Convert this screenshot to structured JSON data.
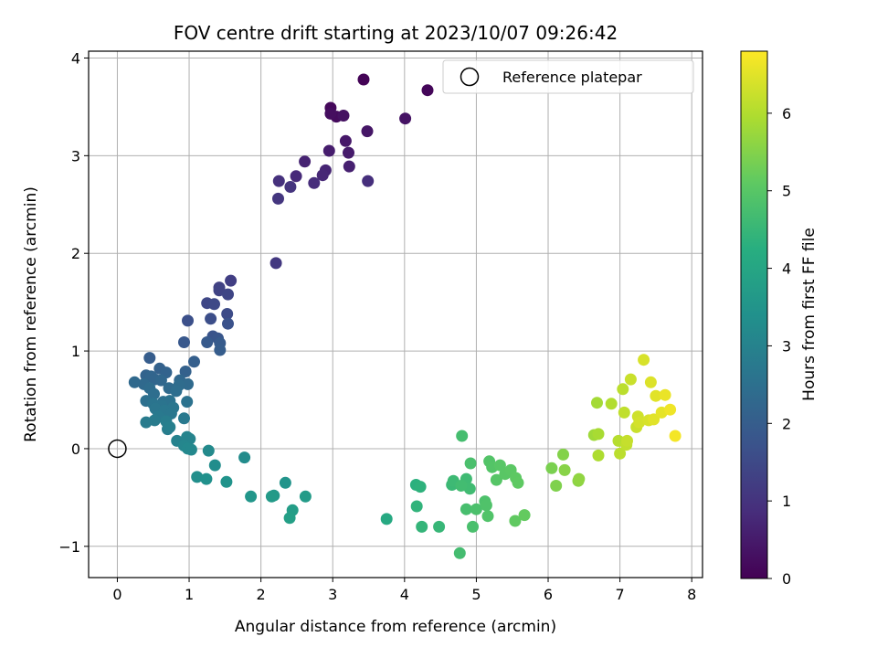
{
  "chart_data": {
    "type": "scatter",
    "title": "FOV centre drift starting at 2023/10/07 09:26:42",
    "xlabel": "Angular distance from reference (arcmin)",
    "ylabel": "Rotation from reference (arcmin)",
    "xlim": [
      -0.4,
      8.15
    ],
    "ylim": [
      -1.32,
      4.07
    ],
    "xticks": [
      "0",
      "1",
      "2",
      "3",
      "4",
      "5",
      "6",
      "7",
      "8"
    ],
    "yticks": [
      "−1",
      "0",
      "1",
      "2",
      "3",
      "4"
    ],
    "grid": true,
    "legend": {
      "placement": "top-right",
      "entries": [
        "Reference platepar"
      ]
    },
    "reference_point": {
      "x": 0,
      "y": 0,
      "marker": "open-circle"
    },
    "colorbar": {
      "label": "Hours from first FF file",
      "range": [
        0,
        6.8
      ],
      "ticks": [
        "0",
        "1",
        "2",
        "3",
        "4",
        "5",
        "6"
      ],
      "colormap": "viridis"
    },
    "points": [
      [
        3.43,
        3.78,
        0.05
      ],
      [
        4.32,
        3.67,
        0.1
      ],
      [
        2.97,
        3.49,
        0.15
      ],
      [
        3.05,
        3.4,
        0.2
      ],
      [
        2.97,
        3.43,
        0.25
      ],
      [
        3.15,
        3.41,
        0.3
      ],
      [
        4.01,
        3.38,
        0.35
      ],
      [
        3.48,
        3.25,
        0.4
      ],
      [
        3.18,
        3.15,
        0.45
      ],
      [
        3.22,
        3.03,
        0.5
      ],
      [
        2.95,
        3.05,
        0.55
      ],
      [
        3.23,
        2.89,
        0.6
      ],
      [
        2.61,
        2.94,
        0.65
      ],
      [
        2.9,
        2.85,
        0.7
      ],
      [
        2.86,
        2.8,
        0.75
      ],
      [
        2.49,
        2.79,
        0.8
      ],
      [
        2.74,
        2.72,
        0.85
      ],
      [
        3.49,
        2.74,
        0.9
      ],
      [
        2.25,
        2.74,
        0.95
      ],
      [
        2.41,
        2.68,
        1.0
      ],
      [
        2.24,
        2.56,
        1.05
      ],
      [
        2.21,
        1.9,
        1.1
      ],
      [
        1.58,
        1.72,
        1.25
      ],
      [
        1.42,
        1.65,
        1.3
      ],
      [
        1.42,
        1.62,
        1.35
      ],
      [
        1.54,
        1.58,
        1.4
      ],
      [
        1.25,
        1.49,
        1.45
      ],
      [
        1.35,
        1.48,
        1.5
      ],
      [
        1.53,
        1.38,
        1.55
      ],
      [
        1.3,
        1.33,
        1.6
      ],
      [
        0.98,
        1.31,
        1.65
      ],
      [
        1.54,
        1.28,
        1.7
      ],
      [
        1.33,
        1.15,
        1.75
      ],
      [
        1.4,
        1.13,
        1.8
      ],
      [
        0.93,
        1.09,
        1.85
      ],
      [
        1.25,
        1.09,
        1.9
      ],
      [
        1.43,
        1.08,
        1.95
      ],
      [
        1.43,
        1.01,
        2.0
      ],
      [
        0.45,
        0.93,
        2.0
      ],
      [
        1.07,
        0.89,
        2.05
      ],
      [
        0.95,
        0.79,
        2.1
      ],
      [
        0.59,
        0.82,
        2.1
      ],
      [
        0.68,
        0.78,
        2.15
      ],
      [
        0.4,
        0.75,
        2.15
      ],
      [
        0.47,
        0.74,
        2.2
      ],
      [
        0.52,
        0.71,
        2.2
      ],
      [
        0.87,
        0.7,
        2.25
      ],
      [
        0.61,
        0.7,
        2.25
      ],
      [
        0.24,
        0.68,
        2.3
      ],
      [
        0.37,
        0.66,
        2.3
      ],
      [
        0.98,
        0.66,
        2.35
      ],
      [
        0.72,
        0.62,
        2.35
      ],
      [
        0.86,
        0.65,
        2.4
      ],
      [
        0.45,
        0.62,
        2.4
      ],
      [
        0.51,
        0.56,
        2.45
      ],
      [
        0.82,
        0.59,
        2.45
      ],
      [
        0.4,
        0.49,
        2.5
      ],
      [
        0.64,
        0.48,
        2.5
      ],
      [
        0.97,
        0.48,
        2.55
      ],
      [
        0.73,
        0.49,
        2.55
      ],
      [
        0.5,
        0.46,
        2.6
      ],
      [
        0.62,
        0.44,
        2.6
      ],
      [
        0.78,
        0.42,
        2.65
      ],
      [
        0.53,
        0.41,
        2.65
      ],
      [
        0.66,
        0.39,
        2.7
      ],
      [
        0.75,
        0.36,
        2.7
      ],
      [
        0.57,
        0.33,
        2.75
      ],
      [
        0.93,
        0.31,
        2.75
      ],
      [
        0.52,
        0.29,
        2.8
      ],
      [
        0.4,
        0.27,
        2.8
      ],
      [
        0.68,
        0.28,
        2.85
      ],
      [
        0.7,
        0.2,
        2.85
      ],
      [
        0.73,
        0.22,
        2.9
      ],
      [
        0.83,
        0.08,
        3.0
      ],
      [
        0.97,
        0.12,
        3.05
      ],
      [
        1.01,
        0.1,
        3.05
      ],
      [
        0.93,
        0.03,
        3.1
      ],
      [
        0.98,
        0.0,
        3.15
      ],
      [
        1.03,
        -0.01,
        3.15
      ],
      [
        1.27,
        -0.02,
        3.2
      ],
      [
        1.77,
        -0.09,
        3.25
      ],
      [
        1.36,
        -0.17,
        3.3
      ],
      [
        1.11,
        -0.29,
        3.35
      ],
      [
        1.24,
        -0.31,
        3.4
      ],
      [
        1.52,
        -0.34,
        3.45
      ],
      [
        2.34,
        -0.35,
        3.5
      ],
      [
        1.86,
        -0.49,
        3.55
      ],
      [
        2.18,
        -0.48,
        3.6
      ],
      [
        2.15,
        -0.49,
        3.65
      ],
      [
        2.62,
        -0.49,
        3.7
      ],
      [
        2.44,
        -0.63,
        3.75
      ],
      [
        2.4,
        -0.71,
        3.8
      ],
      [
        3.75,
        -0.72,
        4.1
      ],
      [
        4.16,
        -0.37,
        4.3
      ],
      [
        4.22,
        -0.39,
        4.35
      ],
      [
        4.17,
        -0.59,
        4.4
      ],
      [
        4.24,
        -0.8,
        4.45
      ],
      [
        4.48,
        -0.8,
        4.5
      ],
      [
        4.66,
        -0.37,
        4.55
      ],
      [
        4.68,
        -0.33,
        4.6
      ],
      [
        4.86,
        -0.31,
        4.62
      ],
      [
        4.91,
        -0.41,
        4.65
      ],
      [
        4.79,
        -0.38,
        4.68
      ],
      [
        4.77,
        -1.07,
        4.7
      ],
      [
        4.8,
        0.13,
        4.72
      ],
      [
        4.86,
        -0.62,
        4.75
      ],
      [
        4.95,
        -0.8,
        4.78
      ],
      [
        4.92,
        -0.15,
        4.8
      ],
      [
        5.0,
        -0.62,
        4.82
      ],
      [
        5.12,
        -0.54,
        4.85
      ],
      [
        5.14,
        -0.58,
        4.88
      ],
      [
        5.16,
        -0.69,
        4.9
      ],
      [
        5.18,
        -0.13,
        4.92
      ],
      [
        5.22,
        -0.19,
        4.95
      ],
      [
        5.28,
        -0.32,
        4.98
      ],
      [
        5.33,
        -0.17,
        5.0
      ],
      [
        5.4,
        -0.26,
        5.02
      ],
      [
        5.48,
        -0.22,
        5.05
      ],
      [
        5.55,
        -0.3,
        5.08
      ],
      [
        5.58,
        -0.35,
        5.1
      ],
      [
        5.54,
        -0.74,
        5.12
      ],
      [
        5.67,
        -0.68,
        5.15
      ],
      [
        6.05,
        -0.2,
        5.4
      ],
      [
        6.11,
        -0.38,
        5.45
      ],
      [
        6.21,
        -0.06,
        5.5
      ],
      [
        6.23,
        -0.22,
        5.55
      ],
      [
        6.42,
        -0.33,
        5.6
      ],
      [
        6.43,
        -0.31,
        5.65
      ],
      [
        6.64,
        0.14,
        5.8
      ],
      [
        6.68,
        0.47,
        5.85
      ],
      [
        6.7,
        0.15,
        5.9
      ],
      [
        6.7,
        -0.07,
        5.95
      ],
      [
        6.88,
        0.46,
        6.0
      ],
      [
        6.98,
        0.08,
        6.05
      ],
      [
        7.0,
        -0.05,
        6.1
      ],
      [
        7.04,
        0.61,
        6.1
      ],
      [
        7.06,
        0.37,
        6.15
      ],
      [
        7.09,
        0.04,
        6.15
      ],
      [
        7.1,
        0.08,
        6.2
      ],
      [
        7.15,
        0.71,
        6.25
      ],
      [
        7.23,
        0.22,
        6.25
      ],
      [
        7.25,
        0.33,
        6.3
      ],
      [
        7.27,
        0.27,
        6.35
      ],
      [
        7.33,
        0.91,
        6.4
      ],
      [
        7.4,
        0.29,
        6.4
      ],
      [
        7.43,
        0.68,
        6.45
      ],
      [
        7.47,
        0.3,
        6.5
      ],
      [
        7.5,
        0.54,
        6.5
      ],
      [
        7.58,
        0.37,
        6.55
      ],
      [
        7.63,
        0.55,
        6.6
      ],
      [
        7.7,
        0.4,
        6.65
      ],
      [
        7.77,
        0.13,
        6.7
      ]
    ]
  }
}
